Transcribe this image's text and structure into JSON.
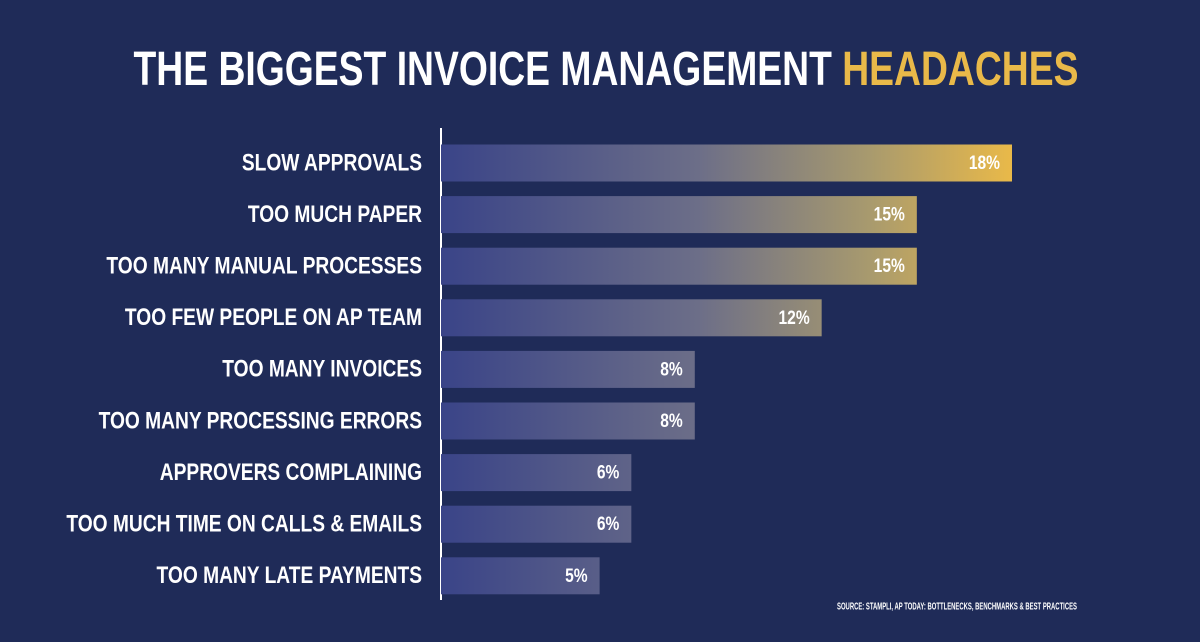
{
  "chart_data": {
    "type": "bar",
    "orientation": "horizontal",
    "title": "THE BIGGEST INVOICE MANAGEMENT",
    "title_highlight": "HEADACHES",
    "categories": [
      "SLOW APPROVALS",
      "TOO MUCH PAPER",
      "TOO MANY MANUAL PROCESSES",
      "TOO FEW PEOPLE ON AP TEAM",
      "TOO MANY INVOICES",
      "TOO MANY PROCESSING ERRORS",
      "APPROVERS COMPLAINING",
      "TOO MUCH TIME ON CALLS & EMAILS",
      "TOO MANY LATE PAYMENTS"
    ],
    "values": [
      18,
      15,
      15,
      12,
      8,
      8,
      6,
      6,
      5
    ],
    "value_labels": [
      "18%",
      "15%",
      "15%",
      "12%",
      "8%",
      "8%",
      "6%",
      "6%",
      "5%"
    ],
    "color": "#e9b949",
    "source": "SOURCE: STAMPLI, AP TODAY: BOTTLENECKS, BENCHMARKS & BEST PRACTICES"
  }
}
